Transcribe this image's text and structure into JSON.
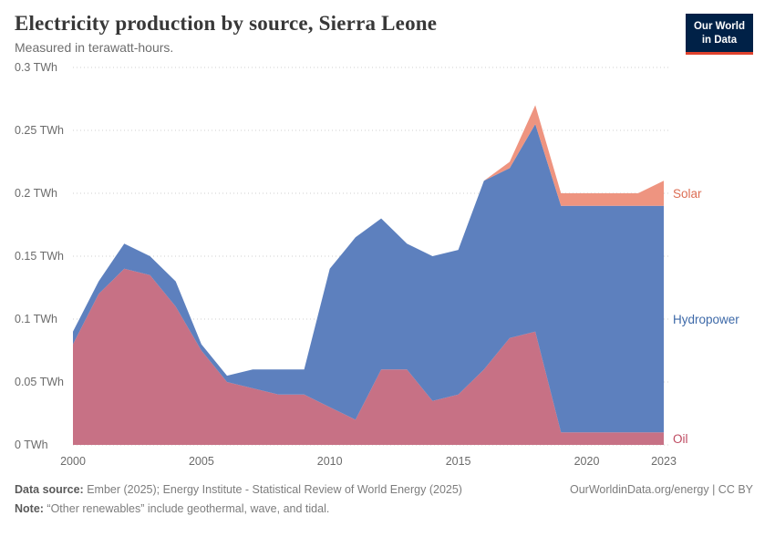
{
  "header": {
    "title": "Electricity production by source, Sierra Leone",
    "subtitle": "Measured in terawatt-hours.",
    "logo_line1": "Our World",
    "logo_line2": "in Data"
  },
  "brand": {
    "navy": "#002147",
    "red": "#E0422D"
  },
  "footer": {
    "source_label": "Data source:",
    "source_text": " Ember (2025); Energy Institute - Statistical Review of World Energy (2025)",
    "note_label": "Note:",
    "note_text": " “Other renewables” include geothermal, wave, and tidal.",
    "credit": "OurWorldinData.org/energy | CC BY"
  },
  "chart_data": {
    "type": "area",
    "stacked": true,
    "title": "Electricity production by source, Sierra Leone",
    "subtitle": "Measured in terawatt-hours.",
    "ylim": [
      0,
      0.3
    ],
    "grid": "horizontal-dotted",
    "legend_position": "right-edge-labels",
    "x": [
      2000,
      2001,
      2002,
      2003,
      2004,
      2005,
      2006,
      2007,
      2008,
      2009,
      2010,
      2011,
      2012,
      2013,
      2014,
      2015,
      2016,
      2017,
      2018,
      2019,
      2020,
      2021,
      2022,
      2023
    ],
    "xticks": [
      2000,
      2005,
      2010,
      2015,
      2020,
      2023
    ],
    "ytick_values": [
      0,
      0.05,
      0.1,
      0.15,
      0.2,
      0.25,
      0.3
    ],
    "ytick_labels": [
      "0 TWh",
      "0.05 TWh",
      "0.1 TWh",
      "0.15 TWh",
      "0.2 TWh",
      "0.25 TWh",
      "0.3 TWh"
    ],
    "series": [
      {
        "name": "Oil",
        "color": "#BE4A60",
        "fill": "#C77185",
        "values": [
          0.08,
          0.12,
          0.14,
          0.135,
          0.11,
          0.075,
          0.05,
          0.045,
          0.04,
          0.04,
          0.03,
          0.02,
          0.06,
          0.06,
          0.035,
          0.04,
          0.06,
          0.085,
          0.09,
          0.01,
          0.01,
          0.01,
          0.01,
          0.01
        ]
      },
      {
        "name": "Hydropower",
        "color": "#3D69A8",
        "fill": "#5D80BE",
        "values": [
          0.01,
          0.01,
          0.02,
          0.015,
          0.02,
          0.005,
          0.005,
          0.015,
          0.02,
          0.02,
          0.11,
          0.145,
          0.12,
          0.1,
          0.115,
          0.115,
          0.15,
          0.135,
          0.165,
          0.18,
          0.18,
          0.18,
          0.18,
          0.18
        ]
      },
      {
        "name": "Solar",
        "color": "#DC6E54",
        "fill": "#EE9480",
        "values": [
          0,
          0,
          0,
          0,
          0,
          0,
          0,
          0,
          0,
          0,
          0,
          0,
          0,
          0,
          0,
          0,
          0,
          0.005,
          0.015,
          0.01,
          0.01,
          0.01,
          0.01,
          0.02
        ]
      }
    ]
  }
}
